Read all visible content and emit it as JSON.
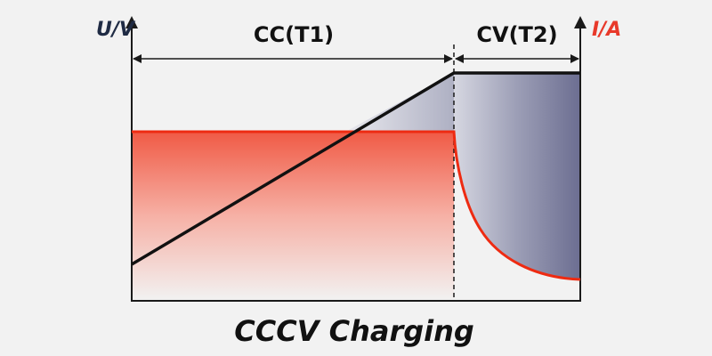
{
  "diagram": {
    "title": "CCCV Charging",
    "left_axis_label": "U/V",
    "right_axis_label": "I/A",
    "phase_cc_label": "CC(T1)",
    "phase_cv_label": "CV(T2)"
  },
  "colors": {
    "background": "#f2f2f2",
    "axis": "#1a1a1a",
    "voltage_line": "#111111",
    "current_line": "#ee2b12",
    "right_axis_label": "#e8392a",
    "left_axis_label": "#1f2b44",
    "title": "#111111",
    "cv_fill_dark": "#6c6e91",
    "cv_fill_light": "#d4d5df",
    "cc_fill_red": "#f05a45"
  }
}
